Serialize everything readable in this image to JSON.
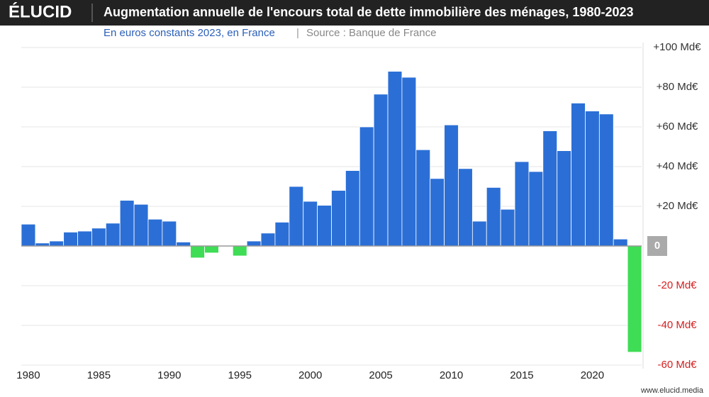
{
  "brand": "ÉLUCID",
  "chart_data": {
    "type": "bar",
    "title": "Augmentation annuelle de l'encours total de dette immobilière des ménages, 1980-2023",
    "subtitle": "En euros constants 2023, en France",
    "source": "Source : Banque de France",
    "categories": [
      1980,
      1981,
      1982,
      1983,
      1984,
      1985,
      1986,
      1987,
      1988,
      1989,
      1990,
      1991,
      1992,
      1993,
      1994,
      1995,
      1996,
      1997,
      1998,
      1999,
      2000,
      2001,
      2002,
      2003,
      2004,
      2005,
      2006,
      2007,
      2008,
      2009,
      2010,
      2011,
      2012,
      2013,
      2014,
      2015,
      2016,
      2017,
      2018,
      2019,
      2020,
      2021,
      2022,
      2023
    ],
    "values": [
      11,
      1.5,
      2.5,
      7,
      7.5,
      9,
      11.5,
      23,
      21,
      13.5,
      12.5,
      2,
      -6,
      -3.5,
      0,
      -5,
      2.5,
      6.5,
      12,
      30,
      22.5,
      20.5,
      28,
      38,
      60,
      76.5,
      88,
      85,
      48.5,
      34,
      61,
      39,
      12.5,
      29.5,
      18.5,
      42.5,
      37.5,
      58,
      48,
      72,
      68,
      66.5,
      3.5,
      -53.5
    ],
    "colors": {
      "positive": "#2b6fd6",
      "negative": "#3fdc55"
    },
    "xticks": [
      1980,
      1985,
      1990,
      1995,
      2000,
      2005,
      2010,
      2015,
      2020
    ],
    "ylim": [
      -60,
      100
    ],
    "yticks": [
      {
        "value": -60,
        "label": "-60 Md€"
      },
      {
        "value": -40,
        "label": "-40 Md€"
      },
      {
        "value": -20,
        "label": "-20 Md€"
      },
      {
        "value": 0,
        "label": "0"
      },
      {
        "value": 20,
        "label": "+20 Md€"
      },
      {
        "value": 40,
        "label": "+40 Md€"
      },
      {
        "value": 60,
        "label": "+60 Md€"
      },
      {
        "value": 80,
        "label": "+80 Md€"
      },
      {
        "value": 100,
        "label": "+100 Md€"
      }
    ],
    "grid": true
  },
  "footer": "www.elucid.media"
}
